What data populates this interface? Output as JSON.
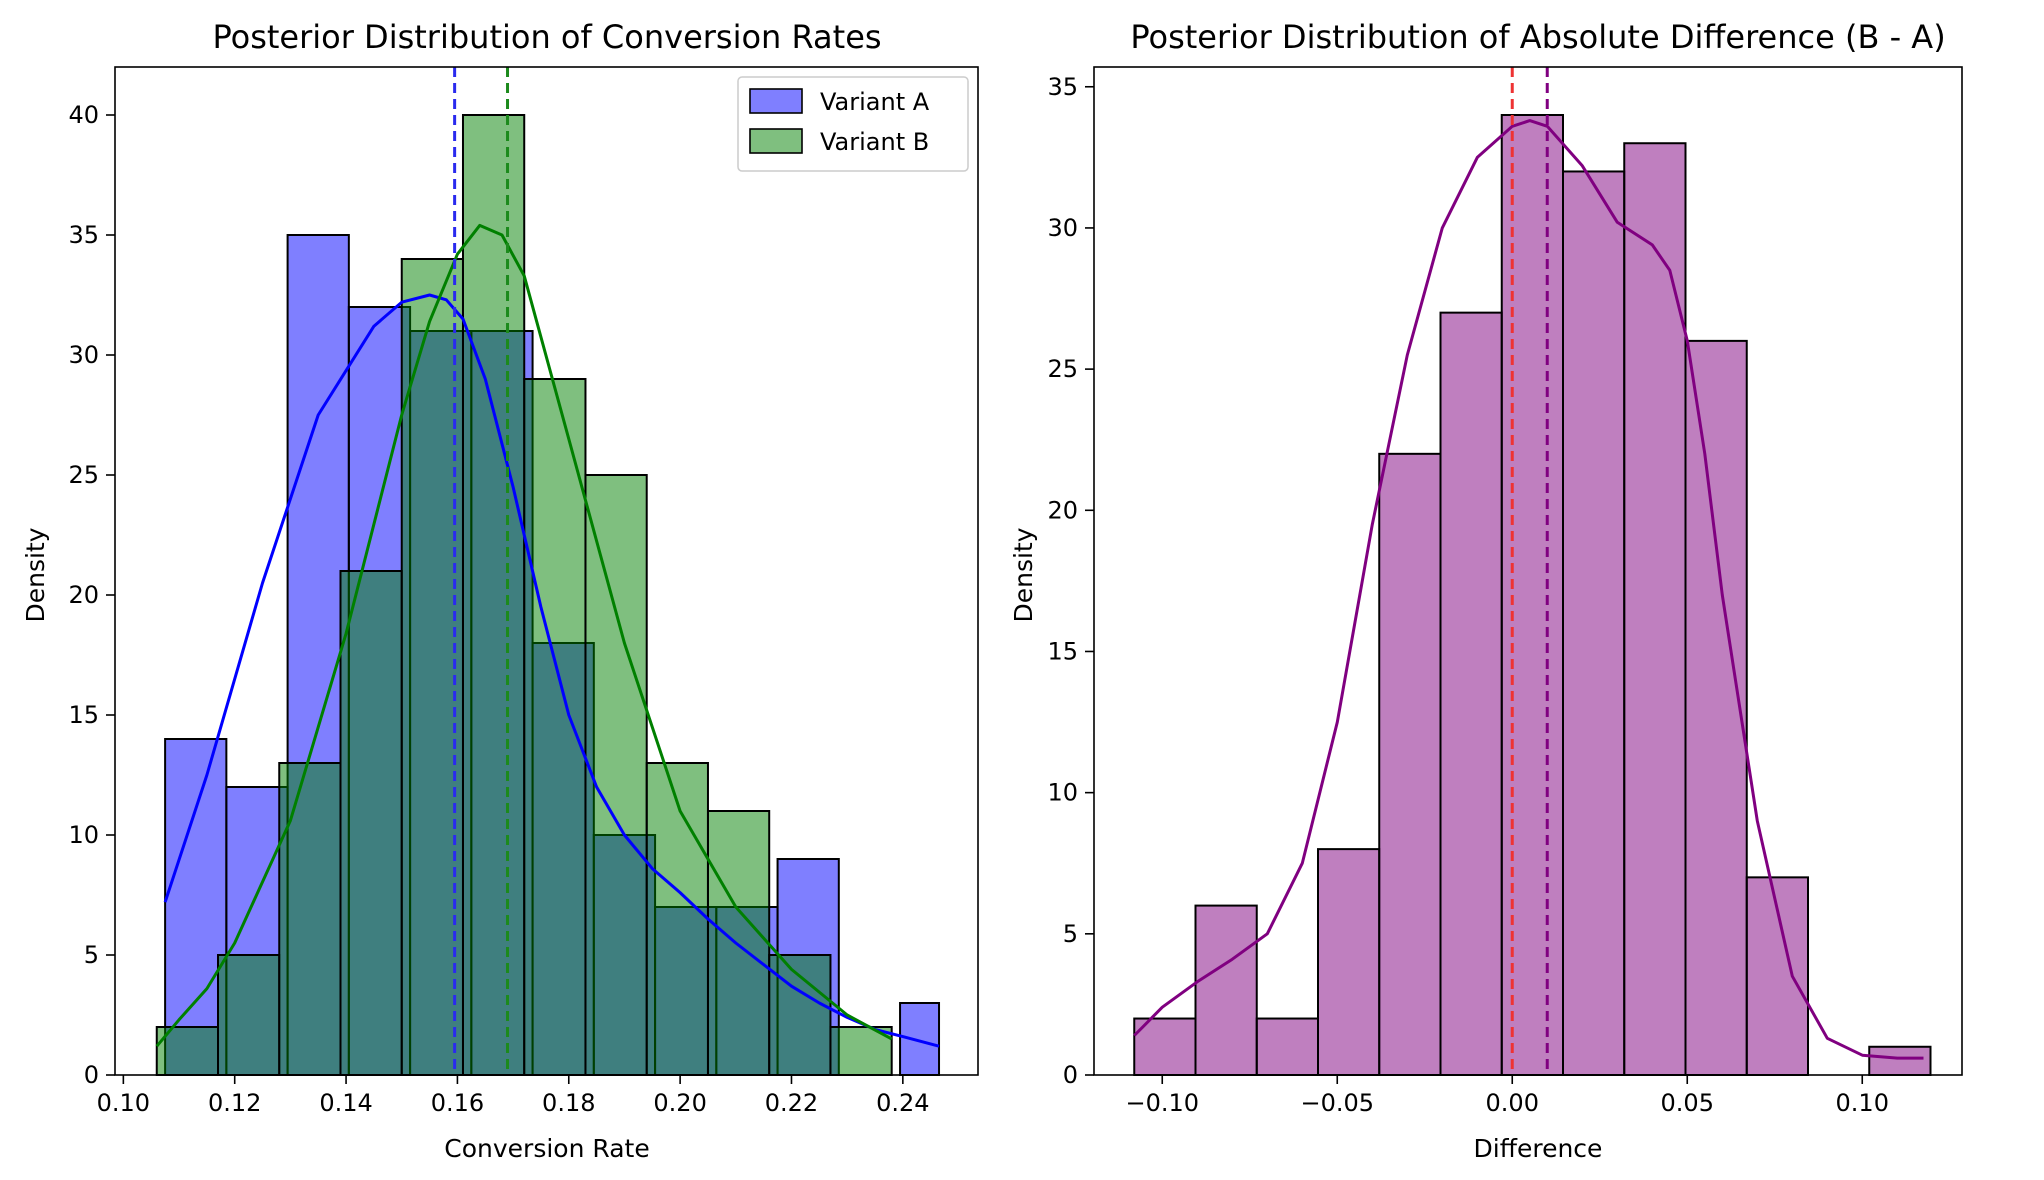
{
  "chart_data": [
    {
      "type": "histogram",
      "title": "Posterior Distribution of Conversion Rates",
      "xlabel": "Conversion Rate",
      "ylabel": "Density",
      "xlim": [
        0.0985,
        0.2535
      ],
      "ylim": [
        0,
        42
      ],
      "xticks": [
        0.1,
        0.12,
        0.14,
        0.16,
        0.18,
        0.2,
        0.22,
        0.24
      ],
      "xtick_labels": [
        "0.10",
        "0.12",
        "0.14",
        "0.16",
        "0.18",
        "0.20",
        "0.22",
        "0.24"
      ],
      "yticks": [
        0,
        5,
        10,
        15,
        20,
        25,
        30,
        35,
        40
      ],
      "ytick_labels": [
        "0",
        "5",
        "10",
        "15",
        "20",
        "25",
        "30",
        "35",
        "40"
      ],
      "legend_position": "top-right",
      "series": [
        {
          "name": "Variant A",
          "color": "#0000ff",
          "bin_edges": [
            0.1075,
            0.1185,
            0.1295,
            0.1405,
            0.1515,
            0.1625,
            0.1735,
            0.1845,
            0.1955,
            0.2065,
            0.2175,
            0.2285,
            0.2395,
            0.2465
          ],
          "density": [
            14,
            12,
            35,
            32,
            31,
            31,
            18,
            10,
            7,
            7,
            9,
            0,
            3
          ],
          "kde_x": [
            0.1075,
            0.115,
            0.125,
            0.135,
            0.145,
            0.15,
            0.155,
            0.158,
            0.161,
            0.165,
            0.17,
            0.175,
            0.18,
            0.185,
            0.19,
            0.195,
            0.2,
            0.205,
            0.21,
            0.215,
            0.22,
            0.225,
            0.23,
            0.235,
            0.24,
            0.2465
          ],
          "kde_y": [
            7.2,
            12.5,
            20.5,
            27.5,
            31.2,
            32.2,
            32.5,
            32.3,
            31.5,
            29.0,
            24.5,
            19.5,
            15.0,
            12.0,
            10.0,
            8.6,
            7.6,
            6.5,
            5.5,
            4.6,
            3.7,
            3.0,
            2.4,
            1.9,
            1.6,
            1.2
          ],
          "mean": 0.1595
        },
        {
          "name": "Variant B",
          "color": "#008000",
          "bin_edges": [
            0.106,
            0.117,
            0.128,
            0.139,
            0.15,
            0.161,
            0.172,
            0.183,
            0.194,
            0.205,
            0.216,
            0.227,
            0.238
          ],
          "density": [
            2,
            5,
            13,
            21,
            34,
            40,
            29,
            25,
            13,
            11,
            5,
            2
          ],
          "kde_x": [
            0.106,
            0.11,
            0.115,
            0.12,
            0.13,
            0.14,
            0.15,
            0.155,
            0.16,
            0.164,
            0.168,
            0.172,
            0.18,
            0.19,
            0.2,
            0.21,
            0.22,
            0.23,
            0.238
          ],
          "kde_y": [
            1.2,
            2.3,
            3.6,
            5.5,
            10.6,
            18.4,
            27.5,
            31.4,
            34.2,
            35.4,
            35.0,
            33.3,
            26.5,
            18.0,
            11.0,
            7.0,
            4.4,
            2.5,
            1.5
          ],
          "mean": 0.169
        }
      ],
      "overlap_color": "#3b7f7f"
    },
    {
      "type": "histogram",
      "title": "Posterior Distribution of Absolute Difference (B - A)",
      "xlabel": "Difference",
      "ylabel": "Density",
      "xlim": [
        -0.1195,
        0.1285
      ],
      "ylim": [
        0,
        35.7
      ],
      "xticks": [
        -0.1,
        -0.05,
        0.0,
        0.05,
        0.1
      ],
      "xtick_labels": [
        "−0.10",
        "−0.05",
        "0.00",
        "0.05",
        "0.10"
      ],
      "yticks": [
        0,
        5,
        10,
        15,
        20,
        25,
        30,
        35
      ],
      "ytick_labels": [
        "0",
        "5",
        "10",
        "15",
        "20",
        "25",
        "30",
        "35"
      ],
      "series": [
        {
          "color": "#800080",
          "bin_edges": [
            -0.108,
            -0.0905,
            -0.073,
            -0.0555,
            -0.038,
            -0.0205,
            -0.003,
            0.0145,
            0.032,
            0.0495,
            0.067,
            0.0845,
            0.102,
            0.1195
          ],
          "density": [
            2,
            6,
            2,
            8,
            22,
            27,
            34,
            32,
            33,
            26,
            7,
            0,
            1
          ],
          "kde_x": [
            -0.108,
            -0.1,
            -0.09,
            -0.08,
            -0.07,
            -0.06,
            -0.05,
            -0.04,
            -0.03,
            -0.02,
            -0.01,
            0.0,
            0.005,
            0.01,
            0.02,
            0.03,
            0.04,
            0.045,
            0.05,
            0.055,
            0.06,
            0.07,
            0.08,
            0.09,
            0.1,
            0.11,
            0.1175
          ],
          "kde_y": [
            1.4,
            2.4,
            3.3,
            4.1,
            5.0,
            7.5,
            12.5,
            19.5,
            25.5,
            30.0,
            32.5,
            33.6,
            33.8,
            33.6,
            32.2,
            30.2,
            29.4,
            28.5,
            26.0,
            22.0,
            17.0,
            9.0,
            3.5,
            1.3,
            0.7,
            0.6,
            0.6
          ]
        }
      ],
      "reference_lines": [
        {
          "x": 0.0,
          "color": "#ee3333",
          "style": "dashed"
        },
        {
          "x": 0.01,
          "color": "#800080",
          "style": "dashed"
        }
      ]
    }
  ]
}
